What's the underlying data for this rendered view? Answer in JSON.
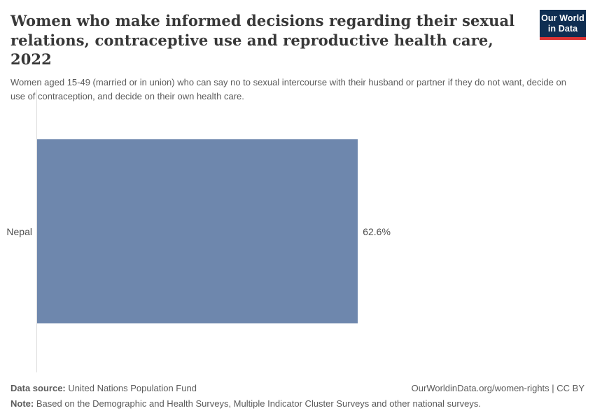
{
  "header": {
    "title": "Women who make informed decisions regarding their sexual relations, contraceptive use and reproductive health care, 2022",
    "subtitle": "Women aged 15-49 (married or in union) who can say no to sexual intercourse with their husband or partner if they do not want, decide on use of contraception, and decide on their own health care.",
    "logo": {
      "line1": "Our World",
      "line2": "in Data",
      "background_color": "#0f2e52",
      "accent_color": "#dc3434"
    }
  },
  "chart_data": {
    "type": "bar",
    "orientation": "horizontal",
    "categories": [
      "Nepal"
    ],
    "values": [
      62.6
    ],
    "value_labels": [
      "62.6%"
    ],
    "title": "Women who make informed decisions regarding their sexual relations, contraceptive use and reproductive health care, 2022",
    "xlabel": "",
    "ylabel": "",
    "xlim": [
      0,
      100
    ],
    "grid": false,
    "legend": "none",
    "bar_color": "#6e87ad",
    "axis_line_color": "#dedede"
  },
  "footer": {
    "data_source_label": "Data source:",
    "data_source": "United Nations Population Fund",
    "attribution": "OurWorldinData.org/women-rights | CC BY",
    "note_label": "Note:",
    "note": "Based on the Demographic and Health Surveys, Multiple Indicator Cluster Surveys and other national surveys."
  }
}
